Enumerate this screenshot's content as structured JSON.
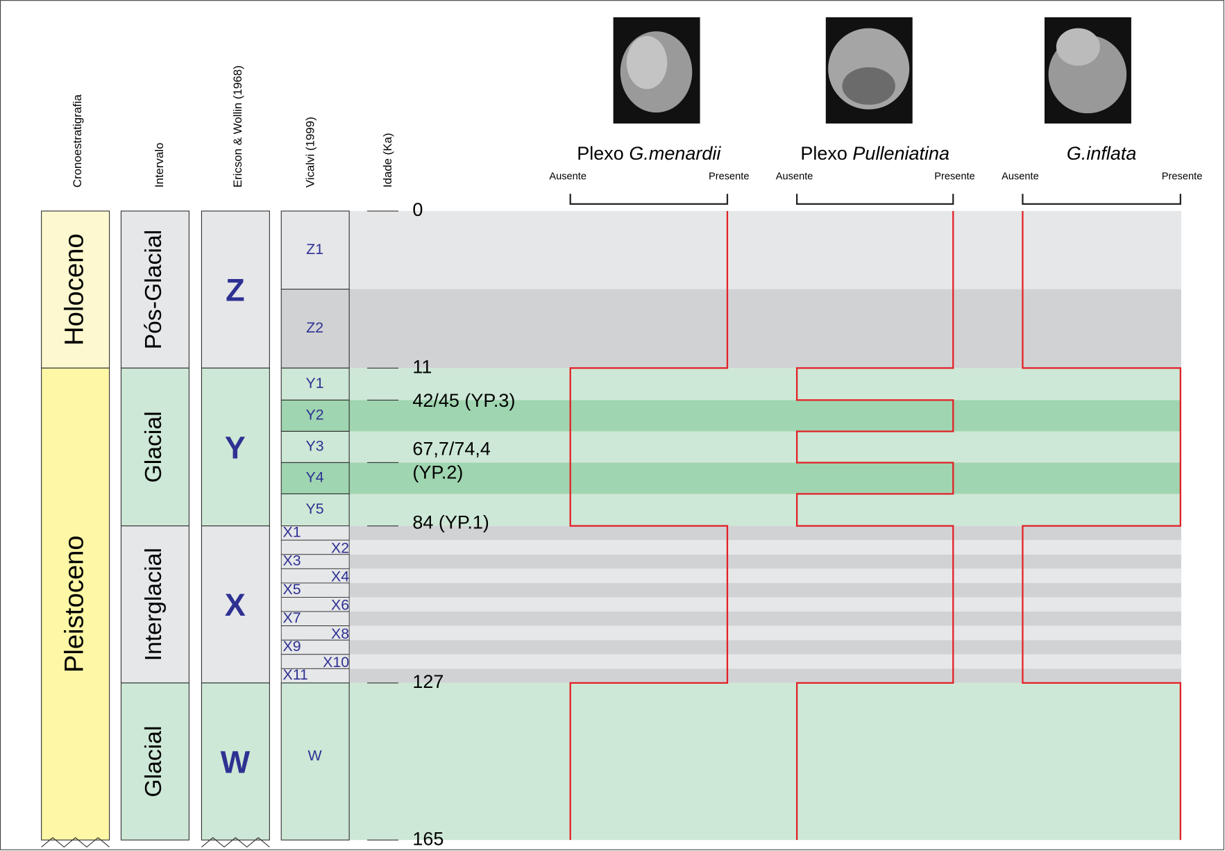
{
  "columns": [
    "Cronoestratigrafia",
    "Intervalo",
    "Ericson & Wollin (1968)",
    "Vicalvi (1999)",
    "Idade (Ka)"
  ],
  "chronostratigraphy": [
    "Holoceno",
    "Pleistoceno"
  ],
  "intervals": [
    "Pós-Glacial",
    "Glacial",
    "Interglacial",
    "Glacial"
  ],
  "ericson_wollin": [
    "Z",
    "Y",
    "X",
    "W"
  ],
  "vicalvi": [
    "Z1",
    "Z2",
    "Y1",
    "Y2",
    "Y3",
    "Y4",
    "Y5",
    "X1",
    "X2",
    "X3",
    "X4",
    "X5",
    "X6",
    "X7",
    "X8",
    "X9",
    "X10",
    "X11",
    "W"
  ],
  "ages": [
    "0",
    "11",
    "42/45 (YP.3)",
    "67,7/74,4",
    "(YP.2)",
    "84 (YP.1)",
    "127",
    "165"
  ],
  "species": [
    {
      "prefix": "Plexo",
      "name": "G.menardii",
      "absent": "Ausente",
      "present": "Presente"
    },
    {
      "prefix": "Plexo",
      "name": "Pulleniatina",
      "absent": "Ausente",
      "present": "Presente"
    },
    {
      "name": "G.inflata",
      "absent": "Ausente",
      "present": "Presente"
    }
  ]
}
